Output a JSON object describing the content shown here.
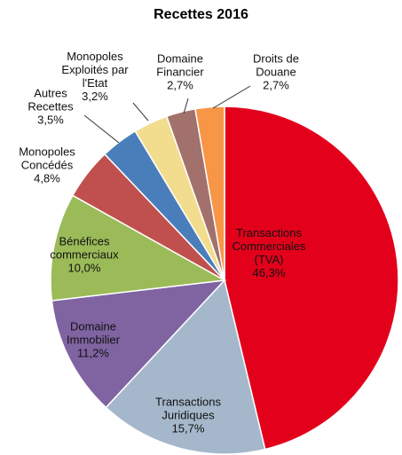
{
  "chart_data": {
    "type": "pie",
    "title": "Recettes 2016",
    "categories": [
      "Transactions\nCommerciales\n(TVA)",
      "Transactions\nJuridiques",
      "Domaine\nImmobilier",
      "Bénéfices\ncommerciaux",
      "Monopoles\nConcédés",
      "Autres\nRecettes",
      "Monopoles\nExploités par\nl'Etat",
      "Domaine\nFinancier",
      "Droits de\nDouane"
    ],
    "values": [
      46.3,
      15.7,
      11.2,
      10.0,
      4.8,
      3.5,
      3.2,
      2.7,
      2.7
    ],
    "value_labels": [
      "46,3%",
      "15,7%",
      "11,2%",
      "10,0%",
      "4,8%",
      "3,5%",
      "3,2%",
      "2,7%",
      "2,7%"
    ],
    "colors": [
      "#e3001b",
      "#a5b7ca",
      "#8064a2",
      "#9bbb59",
      "#c0504d",
      "#4a7ebb",
      "#f2dc8e",
      "#a2716b",
      "#f79646"
    ]
  }
}
